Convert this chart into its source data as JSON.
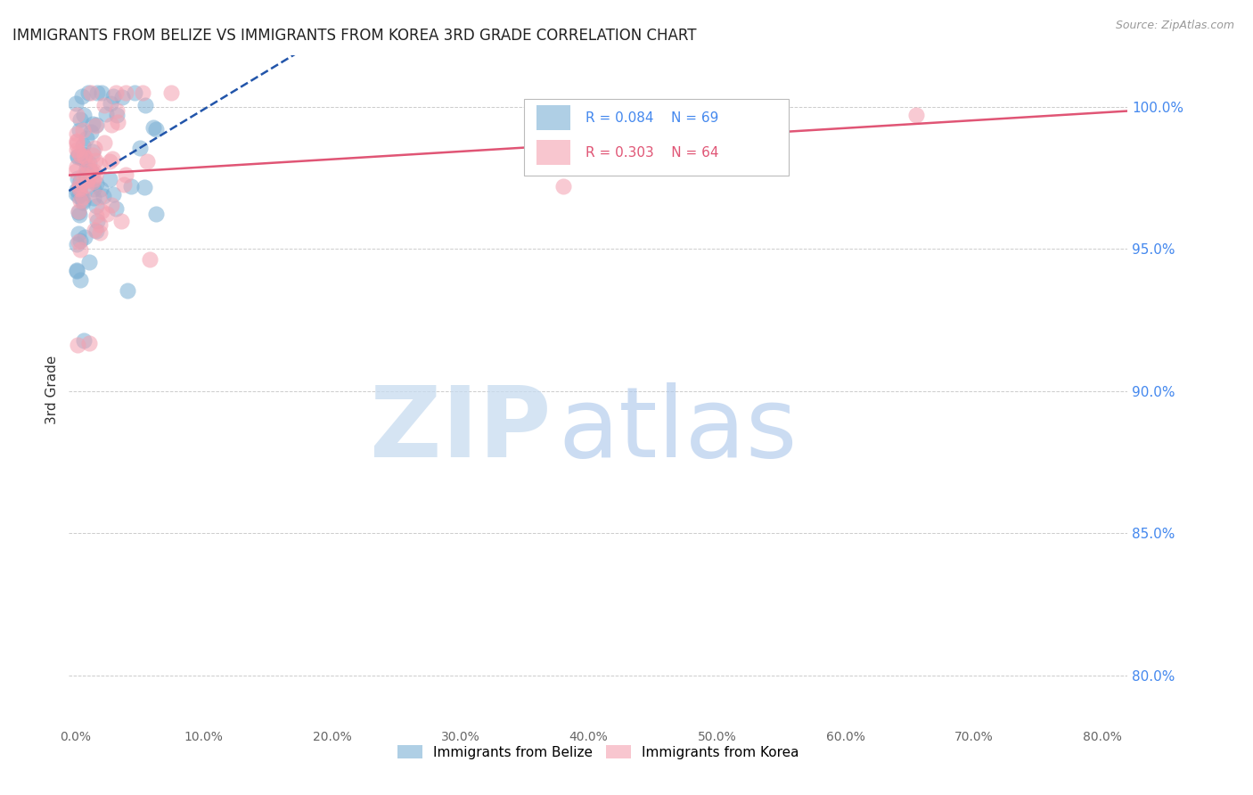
{
  "title": "IMMIGRANTS FROM BELIZE VS IMMIGRANTS FROM KOREA 3RD GRADE CORRELATION CHART",
  "source": "Source: ZipAtlas.com",
  "ylabel": "3rd Grade",
  "right_yticks": [
    "100.0%",
    "95.0%",
    "90.0%",
    "85.0%",
    "80.0%"
  ],
  "right_ytick_vals": [
    1.0,
    0.95,
    0.9,
    0.85,
    0.8
  ],
  "R_belize": 0.084,
  "N_belize": 69,
  "R_korea": 0.303,
  "N_korea": 64,
  "color_belize": "#7BAFD4",
  "color_korea": "#F4A0B0",
  "trendline_belize": "#2255AA",
  "trendline_korea": "#E05575",
  "background_color": "#FFFFFF",
  "grid_color": "#CCCCCC",
  "title_color": "#222222",
  "right_axis_color": "#4488EE",
  "legend_r_color_belize": "#4488EE",
  "legend_r_color_korea": "#E05575",
  "xlim_min": -0.005,
  "xlim_max": 0.82,
  "ylim_min": 0.783,
  "ylim_max": 1.018,
  "x_ticks": [
    0.0,
    0.1,
    0.2,
    0.3,
    0.4,
    0.5,
    0.6,
    0.7,
    0.8
  ],
  "x_tick_labels": [
    "0.0%",
    "10.0%",
    "20.0%",
    "30.0%",
    "40.0%",
    "50.0%",
    "60.0%",
    "70.0%",
    "80.0%"
  ]
}
